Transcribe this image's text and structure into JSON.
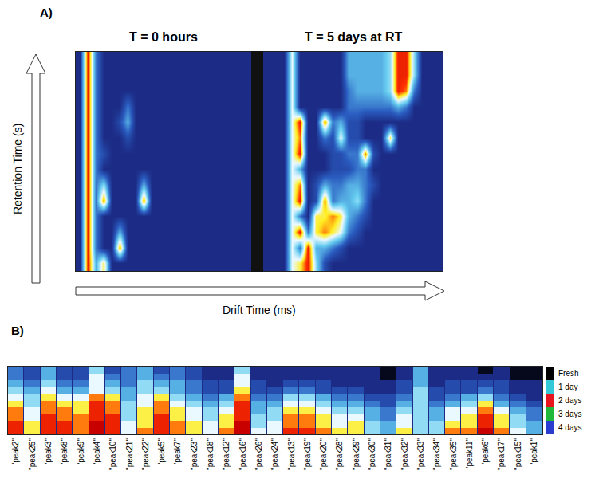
{
  "chart_data": [
    {
      "type": "heatmap",
      "panel_label": "A)",
      "title": "T = 0 hours",
      "x_label": "Drift Time (ms)",
      "y_label": "Retention Time (s)",
      "tick_labels": false,
      "zlim": [
        0,
        10
      ],
      "z": [
        [
          1,
          9,
          3,
          1,
          1,
          1,
          1,
          1,
          1,
          1,
          1,
          1,
          1,
          1,
          1,
          1,
          1,
          1,
          1,
          1,
          1,
          1
        ],
        [
          1,
          9,
          3,
          1,
          1,
          1,
          1,
          1,
          1,
          1,
          1,
          1,
          1,
          1,
          1,
          1,
          1,
          1,
          1,
          1,
          1,
          1
        ],
        [
          1,
          9,
          3,
          1,
          1,
          1,
          1,
          1,
          1,
          1,
          1,
          1,
          1,
          1,
          1,
          1,
          1,
          1,
          1,
          1,
          1,
          1
        ],
        [
          1,
          9,
          3,
          1,
          1,
          1,
          3,
          1,
          1,
          1,
          1,
          1,
          1,
          1,
          1,
          1,
          1,
          1,
          1,
          1,
          1,
          1
        ],
        [
          1,
          9,
          3,
          1,
          1,
          2,
          4,
          1,
          1,
          1,
          1,
          1,
          1,
          1,
          1,
          1,
          1,
          1,
          1,
          1,
          1,
          1
        ],
        [
          1,
          9,
          3,
          1,
          1,
          1,
          2,
          1,
          1,
          1,
          1,
          1,
          1,
          1,
          1,
          1,
          1,
          1,
          1,
          1,
          1,
          1
        ],
        [
          1,
          9,
          3,
          2,
          1,
          1,
          1,
          1,
          1,
          1,
          1,
          1,
          1,
          1,
          1,
          1,
          1,
          1,
          1,
          1,
          1,
          1
        ],
        [
          1,
          9,
          3,
          1,
          1,
          1,
          1,
          1,
          1,
          1,
          1,
          1,
          1,
          1,
          1,
          1,
          1,
          1,
          1,
          1,
          1,
          1
        ],
        [
          1,
          9,
          3,
          5,
          1,
          1,
          1,
          1,
          4,
          1,
          1,
          1,
          1,
          1,
          1,
          1,
          1,
          1,
          1,
          1,
          1,
          1
        ],
        [
          1,
          9,
          3,
          8,
          1,
          1,
          1,
          1,
          8,
          1,
          1,
          1,
          1,
          1,
          1,
          1,
          1,
          1,
          1,
          1,
          1,
          1
        ],
        [
          1,
          9,
          3,
          1,
          1,
          1,
          1,
          1,
          1,
          1,
          1,
          1,
          1,
          1,
          1,
          1,
          1,
          1,
          1,
          1,
          1,
          1
        ],
        [
          1,
          9,
          3,
          1,
          1,
          4,
          1,
          1,
          1,
          1,
          1,
          1,
          1,
          1,
          1,
          1,
          1,
          1,
          1,
          1,
          1,
          1
        ],
        [
          1,
          9,
          3,
          1,
          1,
          8,
          1,
          1,
          1,
          1,
          1,
          1,
          1,
          1,
          1,
          1,
          1,
          1,
          1,
          1,
          1,
          1
        ],
        [
          1,
          9,
          4,
          7,
          1,
          1,
          1,
          1,
          1,
          1,
          1,
          1,
          1,
          1,
          1,
          1,
          1,
          1,
          1,
          1,
          1,
          1
        ]
      ]
    },
    {
      "type": "heatmap",
      "title": "T = 5 days at RT",
      "tick_labels": false,
      "zlim": [
        0,
        10
      ],
      "z": [
        [
          1,
          1,
          1,
          6,
          1,
          1,
          1,
          1,
          1,
          1,
          4,
          4,
          4,
          4,
          4,
          5,
          9,
          9,
          5,
          1,
          1,
          1
        ],
        [
          1,
          1,
          1,
          6,
          1,
          1,
          1,
          1,
          1,
          1,
          4,
          4,
          4,
          4,
          4,
          5,
          9,
          9,
          5,
          1,
          1,
          1
        ],
        [
          1,
          1,
          1,
          6,
          1,
          1,
          1,
          1,
          1,
          1,
          3,
          4,
          4,
          4,
          4,
          5,
          9,
          8,
          3,
          1,
          1,
          1
        ],
        [
          1,
          1,
          1,
          6,
          1,
          1,
          1,
          1,
          1,
          1,
          3,
          3,
          3,
          3,
          3,
          3,
          4,
          3,
          1,
          1,
          1,
          1
        ],
        [
          1,
          1,
          1,
          6,
          9,
          1,
          1,
          8,
          3,
          4,
          2,
          2,
          1,
          1,
          1,
          1,
          1,
          1,
          1,
          1,
          1,
          1
        ],
        [
          1,
          1,
          1,
          6,
          8,
          1,
          1,
          3,
          2,
          6,
          2,
          2,
          1,
          1,
          1,
          7,
          1,
          1,
          1,
          1,
          1,
          1
        ],
        [
          1,
          1,
          1,
          6,
          9,
          1,
          1,
          1,
          2,
          2,
          3,
          3,
          8,
          2,
          1,
          1,
          1,
          1,
          1,
          1,
          1,
          1
        ],
        [
          1,
          1,
          1,
          6,
          4,
          1,
          1,
          1,
          2,
          2,
          2,
          3,
          3,
          1,
          1,
          1,
          1,
          1,
          1,
          1,
          1,
          1
        ],
        [
          1,
          1,
          1,
          6,
          8,
          1,
          2,
          4,
          3,
          3,
          4,
          4,
          3,
          2,
          1,
          1,
          1,
          1,
          1,
          1,
          1,
          1
        ],
        [
          1,
          1,
          1,
          6,
          9,
          1,
          2,
          8,
          3,
          4,
          4,
          5,
          3,
          1,
          1,
          1,
          1,
          1,
          1,
          1,
          1,
          1
        ],
        [
          1,
          1,
          1,
          6,
          3,
          1,
          7,
          7,
          8,
          7,
          4,
          3,
          2,
          1,
          1,
          1,
          1,
          1,
          1,
          1,
          1,
          1
        ],
        [
          1,
          1,
          1,
          6,
          9,
          3,
          7,
          8,
          7,
          6,
          3,
          2,
          1,
          1,
          1,
          1,
          1,
          1,
          1,
          1,
          1,
          1
        ],
        [
          1,
          1,
          1,
          6,
          3,
          9,
          4,
          4,
          3,
          2,
          1,
          1,
          1,
          1,
          1,
          1,
          1,
          1,
          1,
          1,
          1,
          1
        ],
        [
          1,
          1,
          1,
          6,
          7,
          9,
          5,
          2,
          1,
          1,
          1,
          1,
          1,
          1,
          1,
          1,
          1,
          1,
          1,
          1,
          1,
          1
        ]
      ]
    },
    {
      "type": "heatmap",
      "panel_label": "B)",
      "tick_labels": "x",
      "legend": "right",
      "zlim": [
        0,
        10
      ],
      "categories": [
        "\"peak2\"",
        "\"peak25\"",
        "\"peak3\"",
        "\"peak8\"",
        "\"peak9\"",
        "\"peak4\"",
        "\"peak10\"",
        "\"peak21\"",
        "\"peak22\"",
        "\"peak5\"",
        "\"peak7\"",
        "\"peak23\"",
        "\"peak18\"",
        "\"peak12\"",
        "\"peak16\"",
        "\"peak26\"",
        "\"peak24\"",
        "\"peak13\"",
        "\"peak19\"",
        "\"peak20\"",
        "\"peak28\"",
        "\"peak29\"",
        "\"peak30\"",
        "\"peak31\"",
        "\"peak32\"",
        "\"peak33\"",
        "\"peak34\"",
        "\"peak35\"",
        "\"peak11\"",
        "\"peak6\"",
        "\"peak17\"",
        "\"peak15\"",
        "\"peak1\""
      ],
      "series": [
        {
          "name": "Fresh",
          "color": "#000000"
        },
        {
          "name": "1 day",
          "color": "#33c9d6"
        },
        {
          "name": "2 days",
          "color": "#e8141e"
        },
        {
          "name": "3 days",
          "color": "#1fb83a"
        },
        {
          "name": "4 days",
          "color": "#2a3bd0"
        }
      ],
      "row_groups": [
        "Fresh",
        "Fresh",
        "1 day",
        "1 day",
        "2 days",
        "2 days",
        "3 days",
        "3 days",
        "4 days",
        "4 days"
      ],
      "z": [
        [
          3,
          2,
          4,
          2,
          2,
          5,
          2,
          3,
          4,
          2,
          3,
          2,
          1,
          1,
          5,
          1,
          1,
          1,
          1,
          1,
          1,
          1,
          1,
          0,
          1,
          4,
          1,
          1,
          1,
          0,
          1,
          0,
          0
        ],
        [
          3,
          2,
          4,
          2,
          2,
          6,
          3,
          3,
          4,
          3,
          3,
          2,
          1,
          1,
          6,
          1,
          1,
          1,
          1,
          1,
          1,
          1,
          1,
          0,
          1,
          4,
          1,
          1,
          1,
          1,
          1,
          0,
          0
        ],
        [
          4,
          3,
          5,
          3,
          3,
          6,
          4,
          3,
          5,
          4,
          4,
          3,
          2,
          2,
          6,
          2,
          1,
          2,
          2,
          2,
          1,
          1,
          1,
          1,
          2,
          4,
          1,
          2,
          2,
          2,
          2,
          1,
          1
        ],
        [
          5,
          4,
          6,
          4,
          4,
          6,
          5,
          4,
          5,
          5,
          4,
          3,
          2,
          2,
          7,
          2,
          2,
          3,
          3,
          2,
          2,
          2,
          1,
          1,
          2,
          5,
          2,
          2,
          2,
          3,
          2,
          1,
          1
        ],
        [
          6,
          5,
          7,
          6,
          6,
          8,
          7,
          4,
          6,
          7,
          5,
          4,
          3,
          4,
          8,
          3,
          3,
          5,
          5,
          4,
          3,
          3,
          2,
          2,
          3,
          5,
          2,
          3,
          4,
          5,
          3,
          2,
          1
        ],
        [
          7,
          5,
          8,
          7,
          7,
          9,
          8,
          5,
          6,
          8,
          6,
          5,
          4,
          5,
          9,
          4,
          4,
          6,
          6,
          5,
          4,
          4,
          3,
          2,
          4,
          5,
          3,
          4,
          5,
          7,
          4,
          3,
          2
        ],
        [
          8,
          6,
          8,
          8,
          7,
          9,
          8,
          5,
          7,
          8,
          7,
          6,
          5,
          6,
          9,
          4,
          5,
          7,
          7,
          6,
          5,
          5,
          4,
          3,
          5,
          5,
          4,
          6,
          6,
          8,
          6,
          4,
          3
        ],
        [
          8,
          6,
          9,
          8,
          8,
          9,
          9,
          5,
          7,
          9,
          7,
          6,
          5,
          7,
          9,
          5,
          5,
          8,
          8,
          7,
          6,
          6,
          4,
          3,
          6,
          5,
          4,
          6,
          7,
          9,
          7,
          5,
          3
        ],
        [
          9,
          7,
          9,
          9,
          8,
          10,
          9,
          6,
          7,
          9,
          8,
          7,
          6,
          7,
          10,
          5,
          6,
          8,
          8,
          7,
          6,
          7,
          5,
          4,
          6,
          5,
          5,
          7,
          7,
          9,
          7,
          5,
          4
        ],
        [
          9,
          7,
          9,
          9,
          8,
          10,
          9,
          6,
          8,
          9,
          8,
          7,
          6,
          8,
          10,
          6,
          6,
          9,
          9,
          8,
          7,
          7,
          5,
          4,
          7,
          5,
          5,
          8,
          8,
          10,
          8,
          6,
          4
        ]
      ]
    }
  ]
}
